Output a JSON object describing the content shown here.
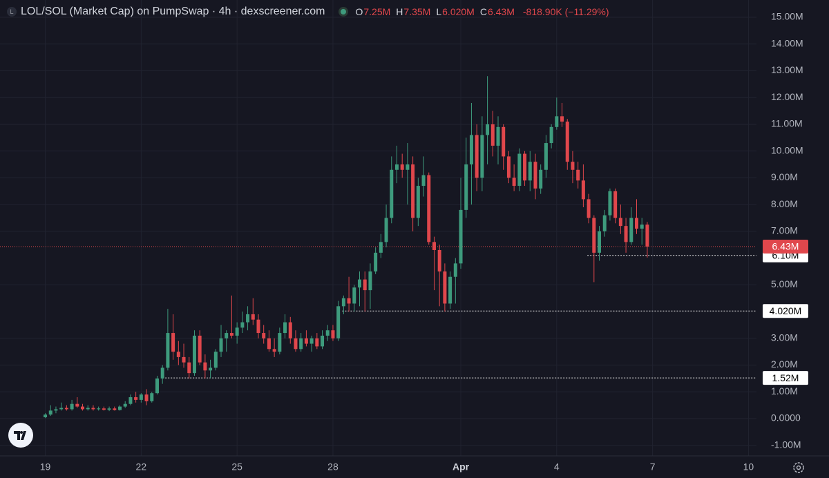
{
  "chart_data": {
    "type": "candlestick",
    "title": "LOL/SOL (Market Cap) on PumpSwap · 4h · dexscreener.com",
    "ohlc_legend": [
      {
        "key": "O",
        "value": "7.25M"
      },
      {
        "key": "H",
        "value": "7.35M"
      },
      {
        "key": "L",
        "value": "6.020M"
      },
      {
        "key": "C",
        "value": "6.43M"
      }
    ],
    "change": "-818.90K (−11.29%)",
    "up_color": "#3e9b7d",
    "down_color": "#e0474c",
    "grid": true,
    "xlim": [
      -34,
      534
    ],
    "xticks": [
      {
        "value": 0,
        "label": "19"
      },
      {
        "value": 72,
        "label": "22"
      },
      {
        "value": 144,
        "label": "25"
      },
      {
        "value": 216,
        "label": "28"
      },
      {
        "value": 312,
        "label": "Apr"
      },
      {
        "value": 384,
        "label": "4"
      },
      {
        "value": 456,
        "label": "7"
      },
      {
        "value": 528,
        "label": "10"
      }
    ],
    "ylim": [
      -1.394,
      15.646
    ],
    "yticks": [
      {
        "value": 15,
        "label": "15.00M"
      },
      {
        "value": 14,
        "label": "14.00M"
      },
      {
        "value": 13,
        "label": "13.00M"
      },
      {
        "value": 12,
        "label": "12.00M"
      },
      {
        "value": 11,
        "label": "11.00M"
      },
      {
        "value": 10,
        "label": "10.00M"
      },
      {
        "value": 9,
        "label": "9.00M"
      },
      {
        "value": 8,
        "label": "8.00M"
      },
      {
        "value": 7,
        "label": "7.00M"
      },
      {
        "value": 5,
        "label": "5.00M"
      },
      {
        "value": 3,
        "label": "3.00M"
      },
      {
        "value": 2,
        "label": "2.00M"
      },
      {
        "value": 1,
        "label": "1.00M"
      },
      {
        "value": 0,
        "label": "0.0000"
      },
      {
        "value": -1,
        "label": "-1.00M"
      }
    ],
    "last_price": {
      "value": 6.43,
      "label": "6.43M"
    },
    "levels": [
      {
        "value": 6.1,
        "label": "6.10M",
        "x": 407
      },
      {
        "value": 4.02,
        "label": "4.020M",
        "x": 223
      },
      {
        "value": 1.52,
        "label": "1.52M",
        "x": 88
      }
    ],
    "x": [
      0,
      4,
      8,
      12,
      16,
      20,
      24,
      28,
      32,
      36,
      40,
      44,
      48,
      52,
      56,
      60,
      64,
      68,
      72,
      76,
      80,
      84,
      88,
      92,
      96,
      100,
      104,
      108,
      112,
      116,
      120,
      124,
      128,
      132,
      136,
      140,
      144,
      148,
      152,
      156,
      160,
      164,
      168,
      172,
      176,
      180,
      184,
      188,
      192,
      196,
      200,
      204,
      208,
      212,
      216,
      220,
      224,
      228,
      232,
      236,
      240,
      244,
      248,
      252,
      256,
      260,
      264,
      268,
      272,
      276,
      280,
      284,
      288,
      292,
      296,
      300,
      304,
      308,
      312,
      316,
      320,
      324,
      328,
      332,
      336,
      340,
      344,
      348,
      352,
      356,
      360,
      364,
      368,
      372,
      376,
      380,
      384,
      388,
      392,
      396,
      400,
      404,
      408,
      412,
      416,
      420,
      424,
      428,
      432,
      436,
      440,
      444,
      448,
      452
    ],
    "open": [
      0.05,
      0.15,
      0.3,
      0.35,
      0.4,
      0.35,
      0.55,
      0.45,
      0.35,
      0.4,
      0.35,
      0.38,
      0.33,
      0.38,
      0.32,
      0.45,
      0.55,
      0.8,
      0.7,
      0.9,
      0.65,
      0.95,
      1.5,
      1.9,
      3.2,
      2.5,
      2.3,
      2.1,
      1.7,
      3.1,
      2.1,
      1.8,
      1.9,
      2.5,
      3,
      3.2,
      3.1,
      3.4,
      3.6,
      3.9,
      3.7,
      3.2,
      3,
      2.6,
      2.5,
      3.2,
      3.6,
      3,
      2.6,
      3,
      2.8,
      3,
      2.7,
      3.1,
      3.3,
      3,
      4.2,
      4.5,
      4.3,
      4.9,
      5.2,
      4.8,
      5.5,
      6.2,
      6.6,
      7.5,
      9.3,
      9.5,
      9.3,
      9.5,
      7.5,
      8.7,
      9.1,
      6.6,
      6.3,
      5.5,
      4.3,
      5.3,
      5.8,
      7.8,
      9.5,
      10.6,
      9,
      10.6,
      11,
      10.2,
      10.9,
      9.8,
      9,
      8.7,
      9.9,
      8.9,
      9.6,
      8.6,
      9.3,
      10.3,
      10.9,
      11.3,
      11.1,
      9.6,
      9.3,
      8.9,
      8.2,
      7.5,
      6.2,
      7,
      7.6,
      8.5,
      7.5,
      7.2,
      6.6,
      7.5,
      7.1,
      7.25
    ],
    "high": [
      0.2,
      0.5,
      0.45,
      0.6,
      0.5,
      0.7,
      0.8,
      0.55,
      0.5,
      0.5,
      0.45,
      0.45,
      0.45,
      0.45,
      0.5,
      0.65,
      0.9,
      1,
      0.95,
      1.1,
      1,
      1.6,
      2,
      4.1,
      3.9,
      2.9,
      2.8,
      2.3,
      3.3,
      3.3,
      2.4,
      2.2,
      2.6,
      3.5,
      3.3,
      4.6,
      3.6,
      4,
      4.2,
      4.5,
      3.9,
      3.5,
      3.3,
      3,
      3.4,
      3.9,
      3.8,
      3.3,
      3.2,
      3.3,
      3.1,
      3.2,
      3.3,
      3.5,
      3.5,
      4.4,
      4.6,
      5.3,
      5,
      5.5,
      5.5,
      5.8,
      6.4,
      6.9,
      8,
      9.8,
      10.2,
      9.9,
      10.3,
      9.8,
      9,
      9.8,
      9.2,
      6.8,
      6.5,
      5.8,
      5.5,
      6,
      9,
      10.5,
      11.8,
      11,
      11.3,
      12.8,
      11.5,
      11.3,
      11,
      10,
      9.5,
      10.1,
      10,
      10,
      9.9,
      9.5,
      10.6,
      11,
      12,
      11.8,
      11.2,
      10,
      9.6,
      9.5,
      8.4,
      7.6,
      7.2,
      7.8,
      8.6,
      8.6,
      8,
      7.5,
      7.9,
      8.2,
      7.5,
      7.35
    ],
    "low": [
      0.02,
      0.1,
      0.2,
      0.3,
      0.3,
      0.3,
      0.4,
      0.3,
      0.3,
      0.3,
      0.3,
      0.3,
      0.28,
      0.3,
      0.3,
      0.4,
      0.5,
      0.6,
      0.6,
      0.5,
      0.6,
      0.9,
      1.3,
      1.8,
      2.2,
      2,
      1.9,
      1.5,
      1.6,
      2,
      1.5,
      1.5,
      1.8,
      2.3,
      2.5,
      3,
      2.8,
      3.2,
      3.3,
      3.5,
      3,
      2.8,
      2.5,
      2.3,
      2.4,
      3,
      2.8,
      2.5,
      2.5,
      2.7,
      2.5,
      2.6,
      2.6,
      2.9,
      2.9,
      2.9,
      3.9,
      4,
      4,
      4.2,
      4,
      4.1,
      5.4,
      6,
      6.4,
      7.3,
      8.8,
      9,
      8,
      7,
      7.2,
      8.3,
      6.5,
      4.8,
      4.2,
      4,
      4.1,
      4.3,
      5.6,
      7.5,
      8,
      8.5,
      8.5,
      9.5,
      9.8,
      9.5,
      9.3,
      8.8,
      8.5,
      8.5,
      8.7,
      8.5,
      8.2,
      8.4,
      9,
      10.1,
      10.8,
      10.9,
      9.3,
      8.8,
      8.6,
      7.9,
      7.3,
      5.1,
      5.9,
      6.8,
      7.4,
      7.3,
      6.9,
      6.2,
      6.5,
      6.9,
      6.5,
      6.02
    ],
    "close": [
      0.15,
      0.3,
      0.35,
      0.4,
      0.35,
      0.55,
      0.45,
      0.35,
      0.4,
      0.35,
      0.38,
      0.33,
      0.38,
      0.32,
      0.45,
      0.55,
      0.8,
      0.7,
      0.9,
      0.65,
      0.95,
      1.5,
      1.9,
      3.2,
      2.5,
      2.3,
      2.1,
      1.7,
      3.1,
      2.1,
      1.8,
      1.9,
      2.5,
      3,
      3.2,
      3.1,
      3.4,
      3.6,
      3.9,
      3.7,
      3.2,
      3,
      2.6,
      2.5,
      3.2,
      3.6,
      3,
      2.6,
      3,
      2.8,
      3,
      2.7,
      3.1,
      3.3,
      3,
      4.2,
      4.5,
      4.3,
      4.9,
      5.2,
      4.8,
      5.5,
      6.2,
      6.6,
      7.5,
      9.3,
      9.5,
      9.3,
      9.5,
      7.5,
      8.7,
      9.1,
      6.6,
      6.3,
      5.5,
      4.3,
      5.3,
      5.8,
      7.8,
      9.5,
      10.6,
      9,
      10.6,
      11,
      10.2,
      10.9,
      9.8,
      9,
      8.7,
      9.9,
      8.9,
      9.6,
      8.6,
      9.3,
      10.3,
      10.9,
      11.3,
      11.1,
      9.6,
      9.3,
      8.9,
      8.2,
      7.5,
      6.2,
      7,
      7.6,
      8.5,
      7.5,
      7.2,
      6.6,
      7.5,
      7.1,
      7.25,
      6.43
    ]
  }
}
